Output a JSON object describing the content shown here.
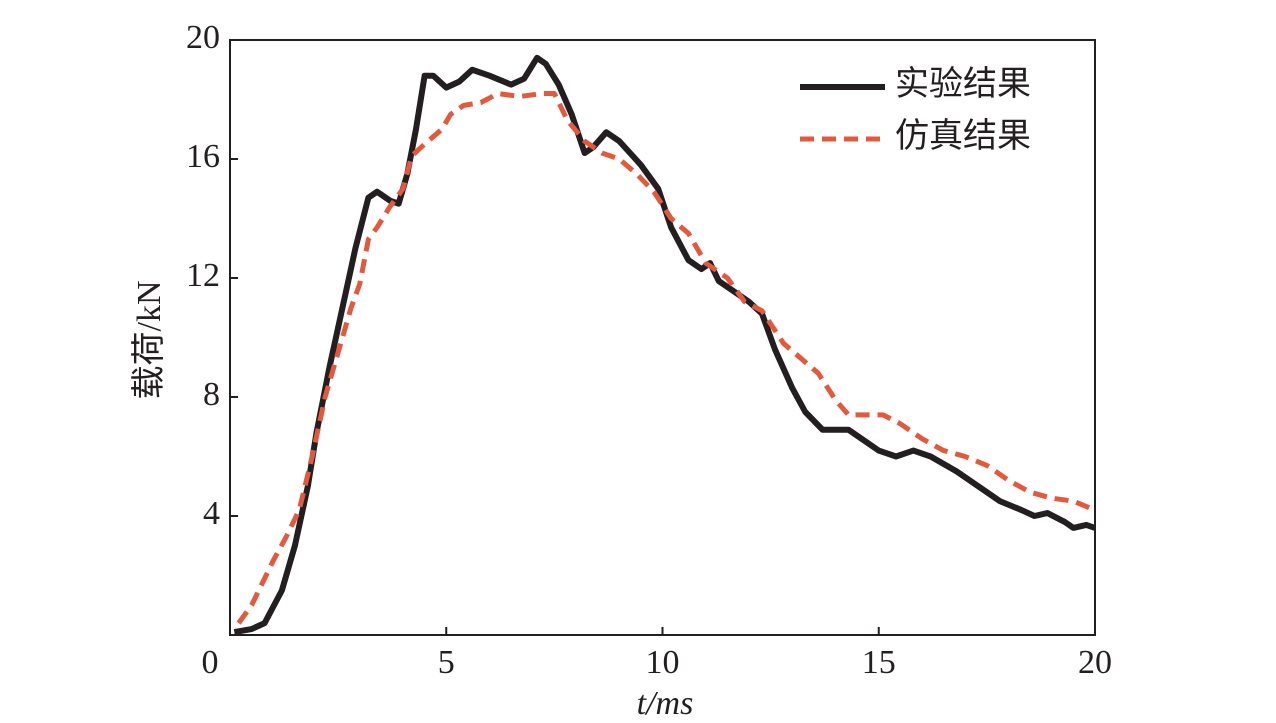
{
  "chart_data": {
    "type": "line",
    "xlabel": "t/ms",
    "ylabel": "载荷/kN",
    "xlim": [
      0,
      20
    ],
    "ylim": [
      0,
      20
    ],
    "xticks": [
      0,
      5,
      10,
      15,
      20
    ],
    "yticks": [
      4,
      8,
      12,
      16,
      20
    ],
    "legend": "upper right",
    "series": [
      {
        "name": "实验结果",
        "color": "#231f20",
        "dash": false,
        "x": [
          0.1,
          0.5,
          0.8,
          1.2,
          1.5,
          1.8,
          2.0,
          2.3,
          2.6,
          2.9,
          3.2,
          3.4,
          3.7,
          3.9,
          4.1,
          4.3,
          4.5,
          4.7,
          5.0,
          5.3,
          5.6,
          6.0,
          6.5,
          6.8,
          7.1,
          7.3,
          7.6,
          7.9,
          8.2,
          8.4,
          8.7,
          9.0,
          9.5,
          9.9,
          10.2,
          10.6,
          10.9,
          11.1,
          11.3,
          11.6,
          12.0,
          12.3,
          12.6,
          13.0,
          13.3,
          13.7,
          14.0,
          14.3,
          14.7,
          15.0,
          15.4,
          15.8,
          16.2,
          16.8,
          17.3,
          17.8,
          18.3,
          18.6,
          18.9,
          19.3,
          19.5,
          19.8,
          20
        ],
        "values": [
          0.1,
          0.2,
          0.4,
          1.5,
          3,
          5,
          6.8,
          9,
          11,
          13,
          14.7,
          14.9,
          14.6,
          14.5,
          15.5,
          17,
          18.8,
          18.8,
          18.4,
          18.6,
          19,
          18.8,
          18.5,
          18.7,
          19.4,
          19.2,
          18.5,
          17.5,
          16.2,
          16.4,
          16.9,
          16.6,
          15.8,
          15,
          13.7,
          12.6,
          12.3,
          12.5,
          11.9,
          11.6,
          11.2,
          10.8,
          9.6,
          8.3,
          7.5,
          6.9,
          6.9,
          6.9,
          6.5,
          6.2,
          6,
          6.2,
          6,
          5.5,
          5,
          4.5,
          4.2,
          4,
          4.1,
          3.8,
          3.6,
          3.7,
          3.6
        ]
      },
      {
        "name": "仿真结果",
        "color": "#e4593d",
        "dash": true,
        "x": [
          0.2,
          0.5,
          0.8,
          1.0,
          1.3,
          1.6,
          1.9,
          2.2,
          2.5,
          2.8,
          3.0,
          3.2,
          3.4,
          3.7,
          4.0,
          4.2,
          4.5,
          4.9,
          5.1,
          5.4,
          5.8,
          6.2,
          6.7,
          7.2,
          7.5,
          7.8,
          8.2,
          8.6,
          9.0,
          9.4,
          9.8,
          10.2,
          10.6,
          11.0,
          11.5,
          11.9,
          12.3,
          12.8,
          13.2,
          13.6,
          14.0,
          14.3,
          14.7,
          15.1,
          15.5,
          16.0,
          16.5,
          17.0,
          17.5,
          18.0,
          18.5,
          19.0,
          19.5,
          20
        ],
        "values": [
          0.4,
          1,
          1.9,
          2.5,
          3.3,
          4.2,
          6,
          8,
          9.5,
          11,
          11.8,
          13.3,
          13.7,
          14.4,
          15,
          16.1,
          16.5,
          17,
          17.5,
          17.8,
          17.9,
          18.2,
          18.1,
          18.2,
          18.2,
          17.3,
          16.6,
          16.2,
          16,
          15.5,
          14.9,
          14,
          13.5,
          12.5,
          12,
          11.2,
          10.9,
          9.8,
          9.3,
          8.8,
          7.9,
          7.4,
          7.4,
          7.4,
          7.1,
          6.6,
          6.2,
          6,
          5.7,
          5.2,
          4.8,
          4.6,
          4.5,
          4.2
        ]
      }
    ]
  }
}
